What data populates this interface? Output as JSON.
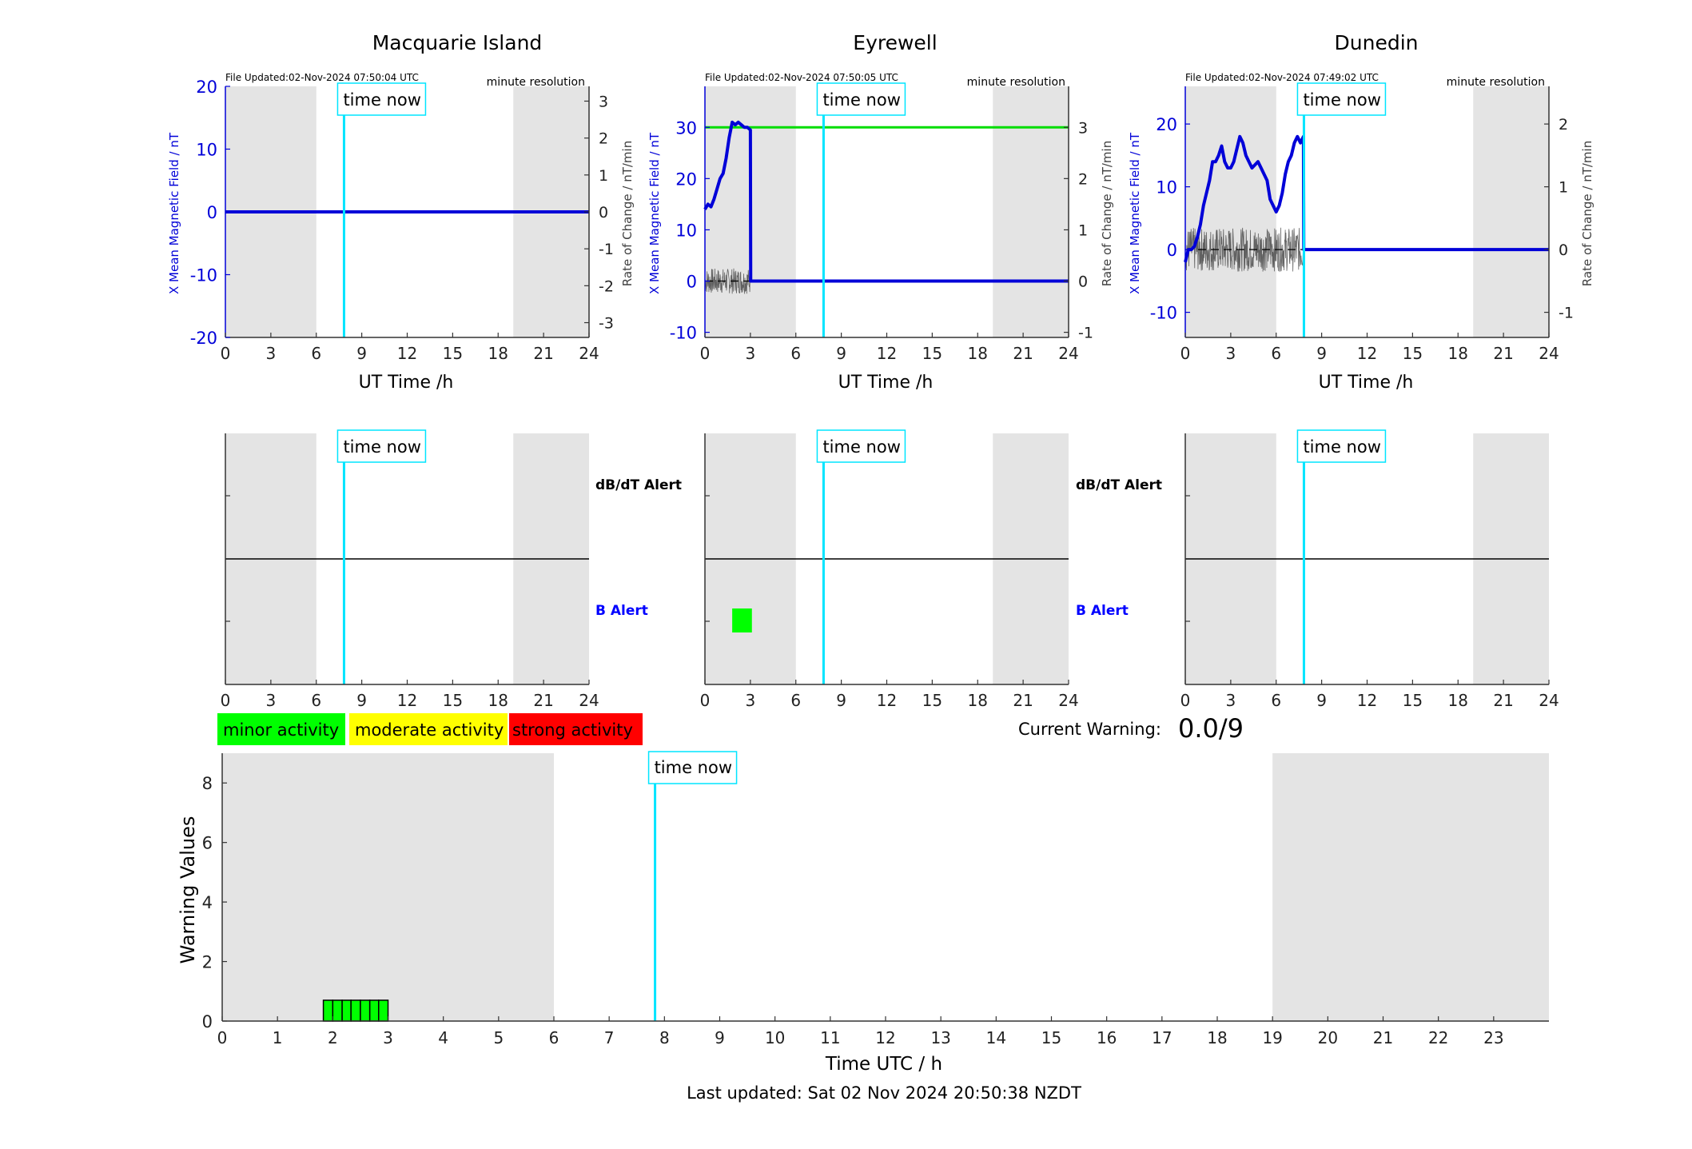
{
  "colors": {
    "field": "#0000d8",
    "rate": "#404040",
    "threshold": "#00dd00",
    "time_now": "#00e5ff",
    "night": "#e4e4e4",
    "minor": "#00ff00",
    "moderate": "#ffff00",
    "strong": "#ff0000",
    "b_alert_label": "#0000ff"
  },
  "stations": [
    {
      "name": "Macquarie Island",
      "file_updated": "File Updated:02-Nov-2024 07:50:04 UTC",
      "resolution": "minute resolution",
      "time_now_label": "time now",
      "ylabel_left": "X Mean Magnetic Field / nT",
      "ylabel_right": "Rate of Change / nT/min",
      "xlabel": "UT Time /h",
      "xticks": [
        "0",
        "3",
        "6",
        "9",
        "12",
        "15",
        "18",
        "21",
        "24"
      ],
      "yticks_left": [
        "-20",
        "-10",
        "0",
        "10",
        "20"
      ],
      "yticks_right": [
        "-3",
        "-2",
        "-1",
        "0",
        "1",
        "2",
        "3"
      ],
      "b_alert_label": "B Alert",
      "dbdt_alert_label": "dB/dT Alert",
      "alert_xticks": [
        "0",
        "3",
        "6",
        "9",
        "12",
        "15",
        "18",
        "21",
        "24"
      ]
    },
    {
      "name": "Eyrewell",
      "file_updated": "File Updated:02-Nov-2024 07:50:05 UTC",
      "resolution": "minute resolution",
      "time_now_label": "time now",
      "ylabel_left": "X Mean Magnetic Field / nT",
      "ylabel_right": "Rate of Change / nT/min",
      "xlabel": "UT Time /h",
      "xticks": [
        "0",
        "3",
        "6",
        "9",
        "12",
        "15",
        "18",
        "21",
        "24"
      ],
      "yticks_left": [
        "-10",
        "0",
        "10",
        "20",
        "30"
      ],
      "yticks_right": [
        "-1",
        "0",
        "1",
        "2",
        "3"
      ],
      "b_alert_label": "B Alert",
      "dbdt_alert_label": "dB/dT Alert",
      "alert_xticks": [
        "0",
        "3",
        "6",
        "9",
        "12",
        "15",
        "18",
        "21",
        "24"
      ]
    },
    {
      "name": "Dunedin",
      "file_updated": "File Updated:02-Nov-2024 07:49:02 UTC",
      "resolution": "minute resolution",
      "time_now_label": "time now",
      "ylabel_left": "X Mean Magnetic Field / nT",
      "ylabel_right": "Rate of Change / nT/min",
      "xlabel": "UT Time /h",
      "xticks": [
        "0",
        "3",
        "6",
        "9",
        "12",
        "15",
        "18",
        "21",
        "24"
      ],
      "yticks_left": [
        "-10",
        "0",
        "10",
        "20"
      ],
      "yticks_right": [
        "-1",
        "0",
        "1",
        "2"
      ],
      "alert_xticks": [
        "0",
        "3",
        "6",
        "9",
        "12",
        "15",
        "18",
        "21",
        "24"
      ]
    }
  ],
  "legend": {
    "minor": "minor activity",
    "moderate": "moderate activity",
    "strong": "strong activity"
  },
  "current_warning": {
    "label": "Current Warning:",
    "value": "0.0/9"
  },
  "warning_plot": {
    "time_now_label": "time now",
    "ylabel": "Warning Values",
    "xlabel": "Time UTC / h",
    "xticks": [
      "0",
      "1",
      "2",
      "3",
      "4",
      "5",
      "6",
      "7",
      "8",
      "9",
      "10",
      "11",
      "12",
      "13",
      "14",
      "15",
      "16",
      "17",
      "18",
      "19",
      "20",
      "21",
      "22",
      "23"
    ],
    "yticks": [
      "0",
      "2",
      "4",
      "6",
      "8"
    ]
  },
  "last_updated": "Last updated: Sat 02 Nov 2024 20:50:38 NZDT",
  "chart_data": [
    {
      "type": "line",
      "title": "Macquarie Island",
      "xlabel": "UT Time /h",
      "ylabel": "X Mean Magnetic Field / nT",
      "ylabel_right": "Rate of Change / nT/min",
      "xlim": [
        0,
        24
      ],
      "ylim": [
        -20,
        20
      ],
      "ylim_right": [
        -3.4,
        3.4
      ],
      "night_shading_hours": [
        [
          0,
          6
        ],
        [
          19,
          24
        ]
      ],
      "time_now_hour": 7.83,
      "series": [
        {
          "x": [
            0,
            24
          ],
          "y": [
            0,
            0
          ]
        }
      ]
    },
    {
      "type": "line",
      "title": "Eyrewell",
      "xlabel": "UT Time /h",
      "ylabel": "X Mean Magnetic Field / nT",
      "ylabel_right": "Rate of Change / nT/min",
      "xlim": [
        0,
        24
      ],
      "ylim": [
        -11,
        38
      ],
      "ylim_right": [
        -1.1,
        3.8
      ],
      "night_shading_hours": [
        [
          0,
          6
        ],
        [
          19,
          24
        ]
      ],
      "time_now_hour": 7.83,
      "threshold_y": 30,
      "series": [
        {
          "x": [
            0,
            0.2,
            0.4,
            0.6,
            0.8,
            1.0,
            1.2,
            1.4,
            1.6,
            1.8,
            2.0,
            2.2,
            2.4,
            2.6,
            2.8,
            3.0,
            3.02,
            3.1,
            24
          ],
          "y": [
            14,
            15,
            14.5,
            16,
            18,
            20,
            21,
            24,
            28,
            31,
            30.5,
            31,
            30.5,
            30,
            30,
            29.5,
            0,
            0,
            0
          ]
        }
      ],
      "alerts": [
        {
          "x0": 1.8,
          "x1": 3.1,
          "level": "minor",
          "row": "B Alert"
        }
      ]
    },
    {
      "type": "line",
      "title": "Dunedin",
      "xlabel": "UT Time /h",
      "ylabel": "X Mean Magnetic Field / nT",
      "ylabel_right": "Rate of Change / nT/min",
      "xlim": [
        0,
        24
      ],
      "ylim": [
        -14,
        26
      ],
      "ylim_right": [
        -1.4,
        2.6
      ],
      "night_shading_hours": [
        [
          0,
          6
        ],
        [
          19,
          24
        ]
      ],
      "time_now_hour": 7.83,
      "series": [
        {
          "x": [
            0,
            0.2,
            0.4,
            0.6,
            0.8,
            1.0,
            1.2,
            1.4,
            1.6,
            1.8,
            2.0,
            2.2,
            2.4,
            2.6,
            2.8,
            3.0,
            3.2,
            3.4,
            3.6,
            3.8,
            4.0,
            4.2,
            4.4,
            4.6,
            4.8,
            5.0,
            5.2,
            5.4,
            5.6,
            5.8,
            6.0,
            6.2,
            6.4,
            6.6,
            6.8,
            7.0,
            7.2,
            7.4,
            7.6,
            7.8,
            7.82,
            24
          ],
          "y": [
            -2,
            0,
            0,
            0.5,
            2,
            4,
            7,
            9,
            11,
            14,
            14,
            15,
            16.5,
            14,
            13,
            13,
            14,
            16,
            18,
            17,
            15,
            14,
            13,
            13.5,
            14,
            13,
            12,
            11,
            8,
            7,
            6,
            7,
            9,
            12,
            14,
            15,
            17,
            18,
            17,
            18,
            0,
            0
          ]
        }
      ]
    },
    {
      "type": "bar",
      "title": "",
      "xlabel": "Time UTC / h",
      "ylabel": "Warning Values",
      "xlim": [
        0,
        24
      ],
      "ylim": [
        0,
        9
      ],
      "time_now_hour": 7.83,
      "night_shading_hours": [
        [
          0,
          6
        ],
        [
          19,
          24
        ]
      ],
      "bars": [
        {
          "x0": 1.83,
          "x1": 2.0,
          "value": 0.7,
          "level": "minor"
        },
        {
          "x0": 2.0,
          "x1": 2.17,
          "value": 0.7,
          "level": "minor"
        },
        {
          "x0": 2.17,
          "x1": 2.33,
          "value": 0.7,
          "level": "minor"
        },
        {
          "x0": 2.33,
          "x1": 2.5,
          "value": 0.7,
          "level": "minor"
        },
        {
          "x0": 2.5,
          "x1": 2.67,
          "value": 0.7,
          "level": "minor"
        },
        {
          "x0": 2.67,
          "x1": 2.83,
          "value": 0.7,
          "level": "minor"
        },
        {
          "x0": 2.83,
          "x1": 3.0,
          "value": 0.7,
          "level": "minor"
        }
      ]
    }
  ]
}
